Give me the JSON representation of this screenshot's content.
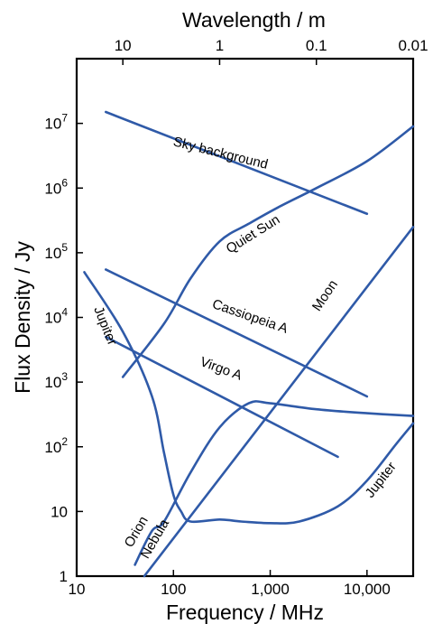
{
  "chart_data": {
    "type": "line",
    "title": "",
    "xlabel": "Frequency / MHz",
    "ylabel": "Flux Density / Jy",
    "top_axis_label": "Wavelength / m",
    "x_scale": "log",
    "y_scale": "log",
    "xlim": [
      10,
      30000
    ],
    "ylim": [
      1,
      100000000
    ],
    "grid": false,
    "legend": "none",
    "x_ticks": [
      {
        "value": 10,
        "label": "10"
      },
      {
        "value": 100,
        "label": "100"
      },
      {
        "value": 1000,
        "label": "1,000"
      },
      {
        "value": 10000,
        "label": "10,000"
      }
    ],
    "top_ticks": [
      {
        "freq_mhz": 30,
        "label": "10"
      },
      {
        "freq_mhz": 300,
        "label": "1"
      },
      {
        "freq_mhz": 3000,
        "label": "0.1"
      },
      {
        "freq_mhz": 30000,
        "label": "0.01"
      }
    ],
    "y_ticks": [
      {
        "value": 1,
        "label": "1",
        "exp": ""
      },
      {
        "value": 10,
        "label": "10",
        "exp": ""
      },
      {
        "value": 100,
        "label": "10",
        "exp": "2"
      },
      {
        "value": 1000,
        "label": "10",
        "exp": "3"
      },
      {
        "value": 10000,
        "label": "10",
        "exp": "4"
      },
      {
        "value": 100000,
        "label": "10",
        "exp": "5"
      },
      {
        "value": 1000000,
        "label": "10",
        "exp": "6"
      },
      {
        "value": 10000000,
        "label": "10",
        "exp": "7"
      }
    ],
    "line_color": "#2f5aa8",
    "series": [
      {
        "name": "Sky background",
        "points": [
          [
            20,
            15000000
          ],
          [
            10000,
            400000
          ]
        ],
        "label": {
          "at": [
            300,
            3000000
          ]
        }
      },
      {
        "name": "Quiet Sun",
        "points": [
          [
            30,
            1200
          ],
          [
            80,
            8000
          ],
          [
            150,
            40000
          ],
          [
            300,
            150000
          ],
          [
            600,
            280000
          ],
          [
            1200,
            500000
          ],
          [
            3000,
            1000000
          ],
          [
            10000,
            2600000
          ],
          [
            30000,
            9000000
          ]
        ],
        "label": {
          "at": [
            700,
            170000
          ]
        }
      },
      {
        "name": "Cassiopeia A",
        "points": [
          [
            20,
            55000
          ],
          [
            10000,
            600
          ]
        ],
        "label": {
          "at": [
            600,
            9000
          ]
        }
      },
      {
        "name": "Virgo A",
        "points": [
          [
            20,
            5000
          ],
          [
            5000,
            70
          ]
        ],
        "label": {
          "at": [
            300,
            1400
          ]
        }
      },
      {
        "name": "Jupiter",
        "points": [
          [
            12,
            50000
          ],
          [
            30,
            6000
          ],
          [
            60,
            600
          ],
          [
            80,
            80
          ],
          [
            100,
            18
          ],
          [
            120,
            10
          ],
          [
            150,
            7
          ],
          [
            300,
            7.5
          ],
          [
            500,
            7
          ],
          [
            1000,
            6.6
          ],
          [
            2000,
            7
          ],
          [
            5000,
            12
          ],
          [
            10000,
            30
          ],
          [
            20000,
            110
          ],
          [
            30000,
            230
          ]
        ],
        "labels": [
          {
            "text": "Jupiter",
            "at": [
              18,
              7000
            ]
          },
          {
            "text": "Jupiter",
            "at": [
              15000,
              28
            ]
          }
        ]
      },
      {
        "name": "Orion Nebula",
        "points": [
          [
            40,
            1.5
          ],
          [
            60,
            5
          ],
          [
            80,
            7
          ],
          [
            150,
            40
          ],
          [
            300,
            200
          ],
          [
            600,
            470
          ],
          [
            1000,
            470
          ],
          [
            3000,
            380
          ],
          [
            10000,
            330
          ],
          [
            30000,
            300
          ]
        ],
        "labels": [
          {
            "text": "Orion",
            "at": [
              45,
              4.5
            ]
          },
          {
            "text": "Nebula",
            "at": [
              70,
              3.5
            ]
          }
        ]
      },
      {
        "name": "Moon",
        "points": [
          [
            50,
            1
          ],
          [
            30000,
            250000
          ]
        ],
        "label": {
          "at": [
            4000,
            20000
          ]
        }
      }
    ]
  }
}
